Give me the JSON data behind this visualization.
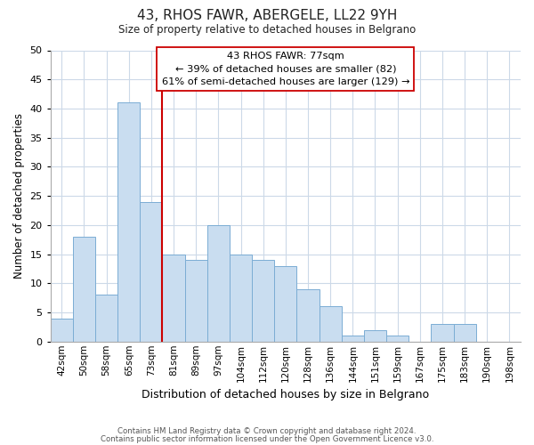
{
  "title": "43, RHOS FAWR, ABERGELE, LL22 9YH",
  "subtitle": "Size of property relative to detached houses in Belgrano",
  "xlabel": "Distribution of detached houses by size in Belgrano",
  "ylabel": "Number of detached properties",
  "bar_labels": [
    "42sqm",
    "50sqm",
    "58sqm",
    "65sqm",
    "73sqm",
    "81sqm",
    "89sqm",
    "97sqm",
    "104sqm",
    "112sqm",
    "120sqm",
    "128sqm",
    "136sqm",
    "144sqm",
    "151sqm",
    "159sqm",
    "167sqm",
    "175sqm",
    "183sqm",
    "190sqm",
    "198sqm"
  ],
  "bar_values": [
    4,
    18,
    8,
    41,
    24,
    15,
    14,
    20,
    15,
    14,
    13,
    9,
    6,
    1,
    2,
    1,
    0,
    3,
    3,
    0,
    0
  ],
  "bar_color": "#c9ddf0",
  "bar_edge_color": "#7badd4",
  "highlight_line_color": "#cc0000",
  "highlight_bar_index": 4,
  "ylim": [
    0,
    50
  ],
  "yticks": [
    0,
    5,
    10,
    15,
    20,
    25,
    30,
    35,
    40,
    45,
    50
  ],
  "ann_line1": "43 RHOS FAWR: 77sqm",
  "ann_line2": "← 39% of detached houses are smaller (82)",
  "ann_line3": "61% of semi-detached houses are larger (129) →",
  "footer_line1": "Contains HM Land Registry data © Crown copyright and database right 2024.",
  "footer_line2": "Contains public sector information licensed under the Open Government Licence v3.0.",
  "background_color": "#ffffff",
  "grid_color": "#ccd9e8"
}
